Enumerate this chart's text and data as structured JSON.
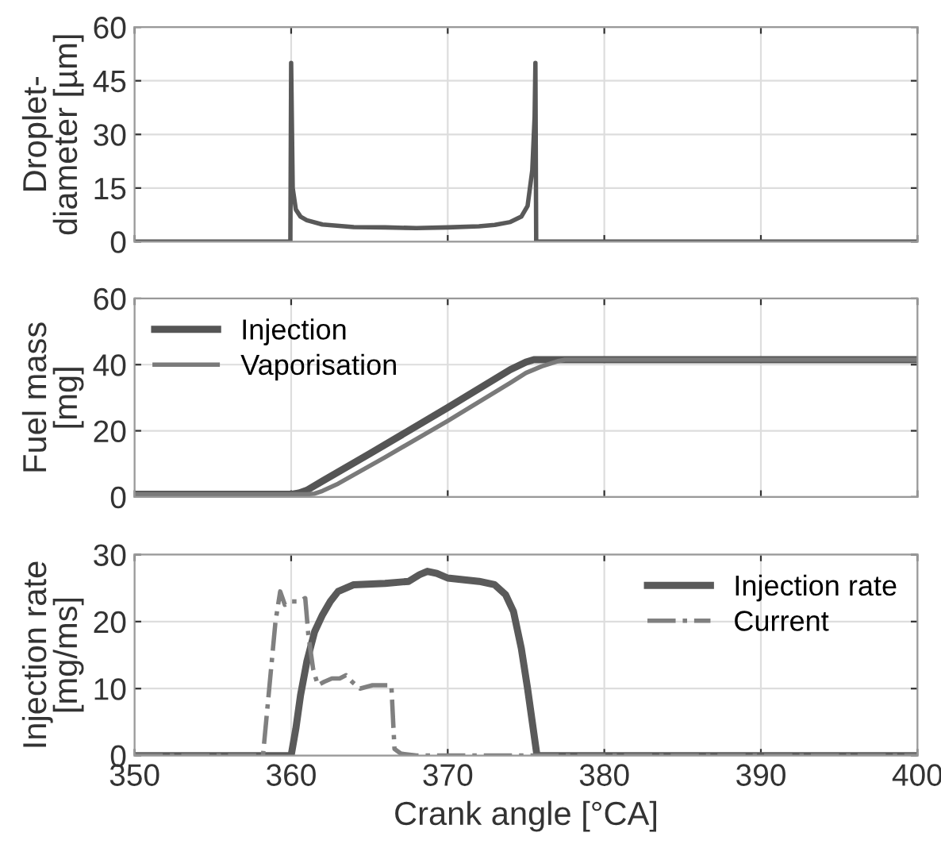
{
  "chart_data": [
    {
      "type": "line",
      "ylabel": "Droplet-\ndiameter [µm]",
      "xlim": [
        350,
        400
      ],
      "xticks": [
        350,
        360,
        370,
        380,
        390,
        400
      ],
      "ylim": [
        0,
        60
      ],
      "yticks": [
        0,
        15,
        30,
        45,
        60
      ],
      "grid": true,
      "legend": false,
      "tick_labels": "y",
      "series": [
        {
          "color": "#595959",
          "x": [
            350,
            359.95,
            360,
            360.1,
            360.3,
            360.6,
            361,
            362,
            364,
            366,
            368,
            370,
            372,
            373,
            374,
            374.7,
            375.1,
            375.4,
            375.55,
            375.6,
            375.65,
            400
          ],
          "values": [
            0,
            0,
            50,
            15,
            9,
            7,
            6,
            4.8,
            4.1,
            4,
            3.8,
            4,
            4.3,
            4.7,
            5.5,
            7,
            10,
            20,
            35,
            50,
            0,
            0
          ]
        }
      ]
    },
    {
      "type": "line",
      "ylabel": "Fuel mass\n[mg]",
      "xlim": [
        350,
        400
      ],
      "xticks": [
        350,
        360,
        370,
        380,
        390,
        400
      ],
      "ylim": [
        0,
        60
      ],
      "yticks": [
        0,
        20,
        40,
        60
      ],
      "grid": true,
      "legend": "top left",
      "tick_labels": "y",
      "series": [
        {
          "name": "Injection",
          "color": "#555555",
          "x": [
            350,
            360,
            360.5,
            361,
            362,
            365,
            370,
            374,
            375,
            375.5,
            380,
            400
          ],
          "values": [
            0.8,
            0.8,
            1.2,
            2,
            4.8,
            13,
            27,
            38.5,
            40.8,
            41.5,
            41.5,
            41.5
          ]
        },
        {
          "name": "Vaporisation",
          "color": "#7a7a7a",
          "x": [
            350,
            361,
            361.5,
            362,
            363,
            366,
            370,
            374,
            375,
            376,
            377,
            377.5,
            400
          ],
          "values": [
            0.8,
            0.8,
            1,
            1.8,
            4,
            12,
            23,
            34.5,
            37.5,
            39.5,
            41,
            41.5,
            41.5
          ]
        }
      ]
    },
    {
      "type": "line",
      "ylabel": "Injection rate\n[mg/ms]",
      "xlabel": "Crank angle [°CA]",
      "xlim": [
        350,
        400
      ],
      "xticks": [
        350,
        360,
        370,
        380,
        390,
        400
      ],
      "ylim": [
        0,
        30
      ],
      "yticks": [
        0,
        10,
        20,
        30
      ],
      "grid": true,
      "legend": "top right",
      "series": [
        {
          "name": "Injection rate",
          "color": "#5a5a5a",
          "line_style": "solid",
          "x": [
            350,
            360,
            360.3,
            360.6,
            361,
            361.5,
            362,
            362.5,
            363,
            364,
            366,
            367.5,
            368.2,
            368.7,
            369.3,
            370,
            372,
            373,
            373.7,
            374.2,
            374.7,
            375.1,
            375.4,
            375.7,
            400
          ],
          "values": [
            0,
            0,
            4,
            9,
            14,
            18.5,
            21,
            23,
            24.5,
            25.5,
            25.7,
            26,
            27,
            27.5,
            27.2,
            26.5,
            26,
            25.5,
            24,
            21.5,
            16,
            10,
            5,
            0,
            0
          ]
        },
        {
          "name": "Current",
          "color": "#808080",
          "line_style": "dashdot",
          "x": [
            350,
            358.2,
            358.6,
            359,
            359.3,
            359.6,
            360,
            360.5,
            360.9,
            361.1,
            361.4,
            361.7,
            362.1,
            362.6,
            363.1,
            363.5,
            363.9,
            364.4,
            365.2,
            366.4,
            366.6,
            367,
            368,
            400
          ],
          "values": [
            0,
            0,
            10,
            20,
            24.5,
            22.5,
            23,
            23,
            23.5,
            18,
            13,
            10.5,
            11,
            11.5,
            11.5,
            12,
            11,
            10,
            10.5,
            10.5,
            1,
            0.3,
            0,
            0
          ]
        }
      ]
    }
  ]
}
